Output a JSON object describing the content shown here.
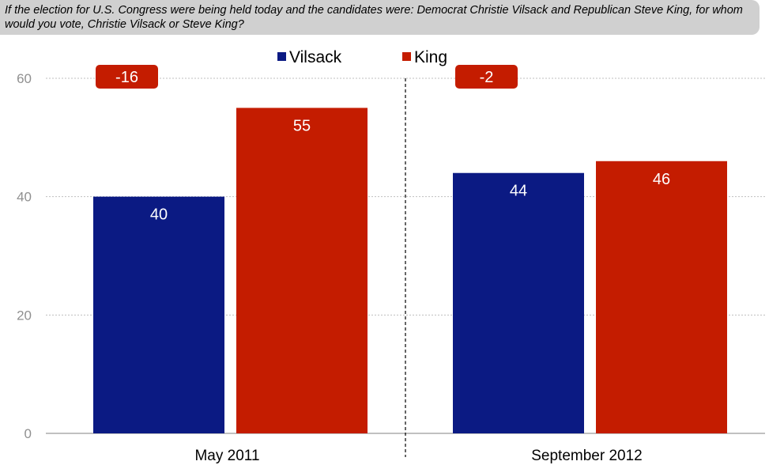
{
  "question": "If the election for U.S. Congress were being held today and the candidates were: Democrat Christie Vilsack and Republican Steve King, for whom would you vote, Christie Vilsack or Steve King?",
  "colors": {
    "vilsack": "#0b1a83",
    "king": "#c41c00",
    "background_box": "#d0d0d0",
    "grid": "#bfbfbf"
  },
  "chart_data": {
    "type": "bar",
    "categories": [
      "May 2011",
      "September 2012"
    ],
    "series": [
      {
        "name": "Vilsack",
        "values": [
          40,
          44
        ]
      },
      {
        "name": "King",
        "values": [
          55,
          46
        ]
      }
    ],
    "differences": [
      "-16",
      "-2"
    ],
    "ylim": [
      0,
      60
    ],
    "yticks": [
      0,
      20,
      40,
      60
    ],
    "grid": true,
    "legend_position": "top-center",
    "title": "",
    "xlabel": "",
    "ylabel": ""
  }
}
